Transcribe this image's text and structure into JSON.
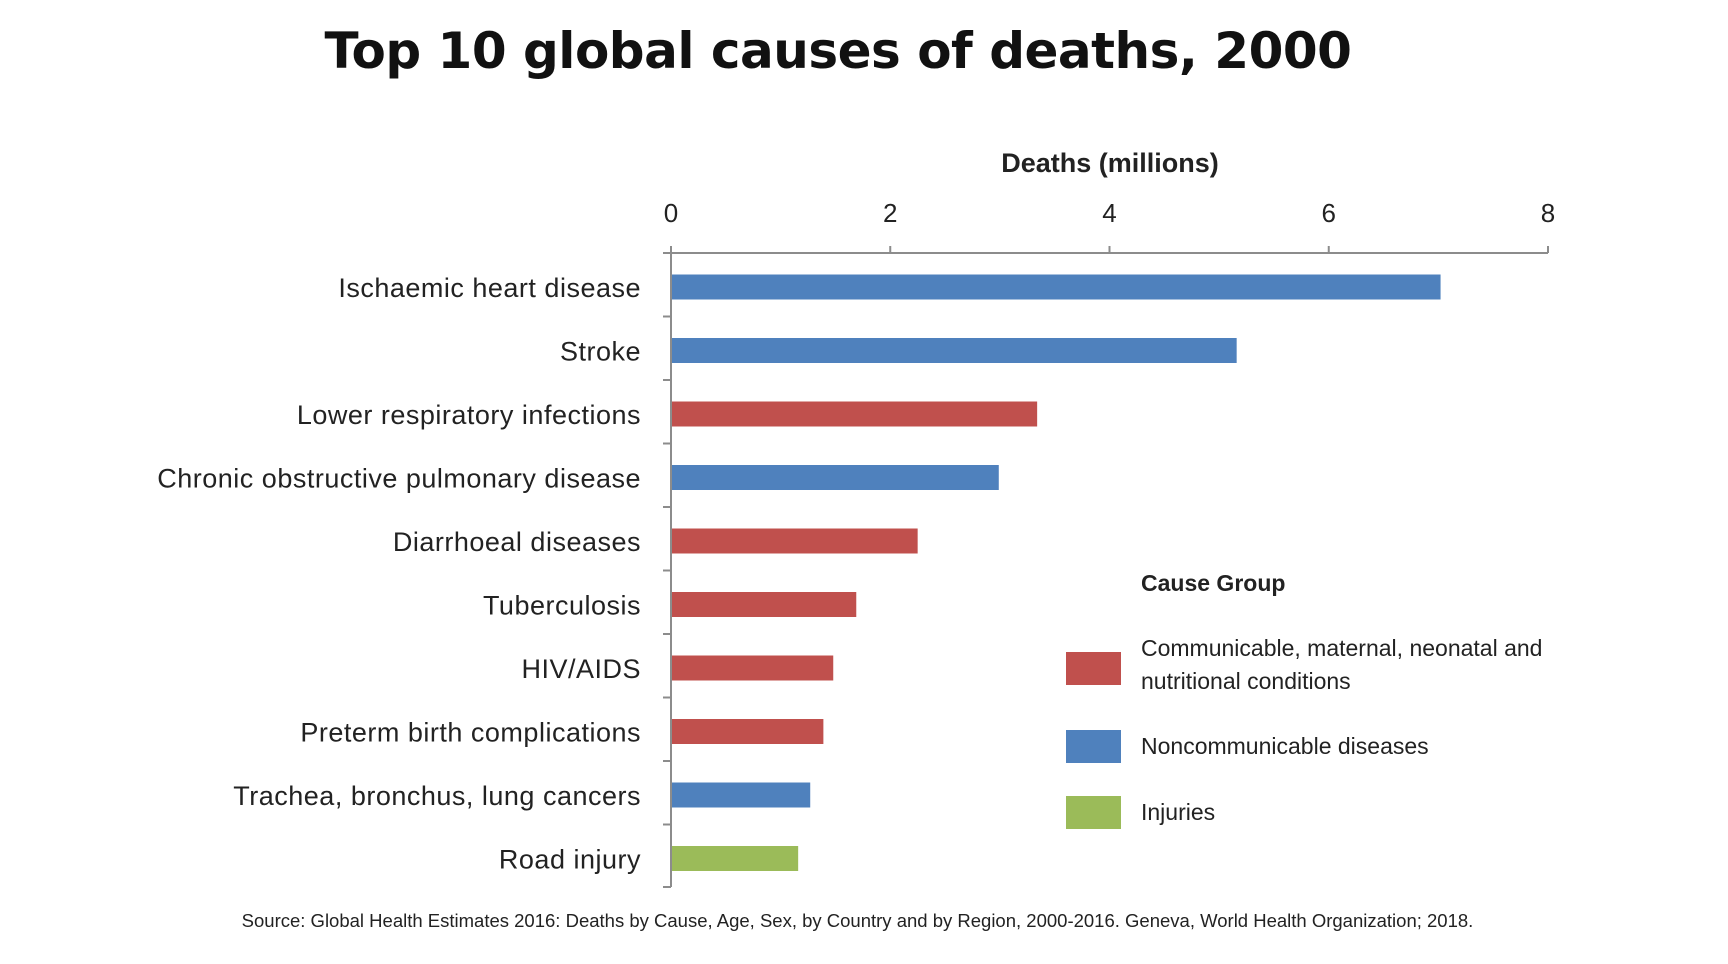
{
  "title": "Top 10 global causes of deaths, 2000",
  "source": "Source:  Global Health Estimates  2016: Deaths by Cause,  Age,  Sex,  by Country and by Region,  2000-2016. Geneva, World Health  Organization;  2018.",
  "legend": {
    "title": "Cause Group",
    "items": [
      {
        "label": "Communicable, maternal, neonatal and nutritional conditions",
        "color": "#c0504d"
      },
      {
        "label": "Noncommunicable diseases",
        "color": "#4f81bd"
      },
      {
        "label": "Injuries",
        "color": "#9bbb59"
      }
    ]
  },
  "chart_data": {
    "type": "bar",
    "orientation": "horizontal",
    "title": "Top 10 global causes of deaths, 2000",
    "xlabel": "Deaths (millions)",
    "ylabel": "",
    "xlim": [
      0,
      8
    ],
    "xticks": [
      0,
      2,
      4,
      6,
      8
    ],
    "x_axis_position": "top",
    "grid": false,
    "legend_position": "bottom-right",
    "categories": [
      "Ischaemic heart disease",
      "Stroke",
      "Lower respiratory infections",
      "Chronic obstructive pulmonary disease",
      "Diarrhoeal diseases",
      "Tuberculosis",
      "HIV/AIDS",
      "Preterm birth complications",
      "Trachea, bronchus, lung cancers",
      "Road injury"
    ],
    "values": [
      7.02,
      5.16,
      3.34,
      2.99,
      2.25,
      1.69,
      1.48,
      1.39,
      1.27,
      1.16
    ],
    "groups": [
      "Noncommunicable diseases",
      "Noncommunicable diseases",
      "Communicable, maternal, neonatal and nutritional conditions",
      "Noncommunicable diseases",
      "Communicable, maternal, neonatal and nutritional conditions",
      "Communicable, maternal, neonatal and nutritional conditions",
      "Communicable, maternal, neonatal and nutritional conditions",
      "Communicable, maternal, neonatal and nutritional conditions",
      "Noncommunicable diseases",
      "Injuries"
    ]
  }
}
